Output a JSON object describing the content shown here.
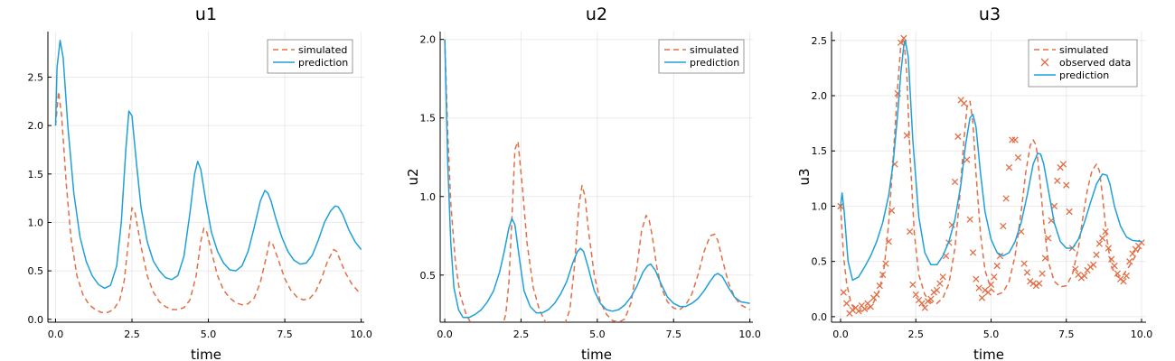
{
  "chart_data": [
    {
      "type": "line",
      "title": "u1",
      "xlabel": "time",
      "ylabel": "",
      "xlim": [
        -0.25,
        10.1
      ],
      "ylim": [
        -0.03,
        2.97
      ],
      "xticks": [
        0.0,
        2.5,
        5.0,
        7.5,
        10.0
      ],
      "xtick_labels": [
        "0.0",
        "2.5",
        "5.0",
        "7.5",
        "10.0"
      ],
      "yticks": [
        0.0,
        0.5,
        1.0,
        1.5,
        2.0,
        2.5
      ],
      "ytick_labels": [
        "0.0",
        "0.5",
        "1.0",
        "1.5",
        "2.0",
        "2.5"
      ],
      "grid": true,
      "legend": "top-right",
      "series": [
        {
          "name": "simulated",
          "style": "dashed",
          "color": "#e26f46",
          "x": [
            0.0,
            0.1,
            0.2,
            0.35,
            0.5,
            0.7,
            0.9,
            1.1,
            1.3,
            1.5,
            1.7,
            1.9,
            2.1,
            2.25,
            2.4,
            2.5,
            2.6,
            2.8,
            3.0,
            3.2,
            3.4,
            3.6,
            3.8,
            4.0,
            4.2,
            4.4,
            4.6,
            4.75,
            4.85,
            4.95,
            5.1,
            5.3,
            5.5,
            5.7,
            5.9,
            6.1,
            6.3,
            6.5,
            6.7,
            6.9,
            7.0,
            7.1,
            7.25,
            7.5,
            7.7,
            7.9,
            8.1,
            8.3,
            8.5,
            8.7,
            8.9,
            9.1,
            9.2,
            9.3,
            9.5,
            9.7,
            9.9,
            10.0
          ],
          "y": [
            2.0,
            2.35,
            2.1,
            1.4,
            0.85,
            0.45,
            0.25,
            0.15,
            0.1,
            0.07,
            0.07,
            0.1,
            0.2,
            0.4,
            0.85,
            1.15,
            1.1,
            0.75,
            0.45,
            0.28,
            0.18,
            0.13,
            0.1,
            0.1,
            0.12,
            0.2,
            0.45,
            0.8,
            0.94,
            0.9,
            0.7,
            0.45,
            0.3,
            0.22,
            0.17,
            0.15,
            0.16,
            0.22,
            0.38,
            0.65,
            0.8,
            0.78,
            0.65,
            0.42,
            0.3,
            0.23,
            0.2,
            0.21,
            0.28,
            0.42,
            0.6,
            0.72,
            0.7,
            0.62,
            0.47,
            0.36,
            0.29,
            0.27
          ]
        },
        {
          "name": "prediction",
          "style": "solid",
          "color": "#1fa0d9",
          "x": [
            0.0,
            0.05,
            0.15,
            0.25,
            0.4,
            0.6,
            0.8,
            1.0,
            1.2,
            1.4,
            1.6,
            1.8,
            2.0,
            2.15,
            2.3,
            2.4,
            2.5,
            2.65,
            2.8,
            3.0,
            3.2,
            3.4,
            3.6,
            3.8,
            4.0,
            4.2,
            4.4,
            4.55,
            4.65,
            4.75,
            4.9,
            5.1,
            5.3,
            5.5,
            5.7,
            5.9,
            6.1,
            6.3,
            6.5,
            6.7,
            6.85,
            6.95,
            7.05,
            7.2,
            7.4,
            7.6,
            7.8,
            8.0,
            8.2,
            8.4,
            8.6,
            8.8,
            9.0,
            9.15,
            9.25,
            9.4,
            9.6,
            9.8,
            10.0
          ],
          "y": [
            2.0,
            2.6,
            2.88,
            2.7,
            2.0,
            1.3,
            0.85,
            0.6,
            0.45,
            0.36,
            0.32,
            0.35,
            0.55,
            1.0,
            1.75,
            2.15,
            2.1,
            1.6,
            1.15,
            0.8,
            0.6,
            0.5,
            0.43,
            0.41,
            0.45,
            0.65,
            1.1,
            1.5,
            1.63,
            1.55,
            1.25,
            0.9,
            0.7,
            0.58,
            0.51,
            0.5,
            0.55,
            0.7,
            0.95,
            1.22,
            1.33,
            1.3,
            1.22,
            1.05,
            0.85,
            0.7,
            0.61,
            0.57,
            0.58,
            0.66,
            0.82,
            1.0,
            1.12,
            1.17,
            1.16,
            1.08,
            0.92,
            0.8,
            0.72
          ]
        }
      ]
    },
    {
      "type": "line",
      "title": "u2",
      "xlabel": "time",
      "ylabel": "u2",
      "xlim": [
        -0.15,
        10.1
      ],
      "ylim": [
        0.2,
        2.05
      ],
      "xticks": [
        0.0,
        2.5,
        5.0,
        7.5,
        10.0
      ],
      "xtick_labels": [
        "0.0",
        "2.5",
        "5.0",
        "7.5",
        "10.0"
      ],
      "yticks": [
        0.5,
        1.0,
        1.5,
        2.0
      ],
      "ytick_labels": [
        "0.5",
        "1.0",
        "1.5",
        "2.0"
      ],
      "grid": true,
      "legend": "top-right",
      "series": [
        {
          "name": "simulated",
          "style": "dashed",
          "color": "#e26f46",
          "x": [
            0.0,
            0.1,
            0.2,
            0.35,
            0.5,
            0.7,
            0.9,
            1.1,
            1.3,
            1.5,
            1.7,
            1.85,
            2.0,
            2.1,
            2.2,
            2.3,
            2.4,
            2.55,
            2.7,
            2.9,
            3.1,
            3.3,
            3.5,
            3.7,
            3.9,
            4.1,
            4.25,
            4.4,
            4.5,
            4.6,
            4.7,
            4.9,
            5.1,
            5.3,
            5.5,
            5.7,
            5.9,
            6.1,
            6.3,
            6.45,
            6.6,
            6.7,
            6.8,
            6.95,
            7.1,
            7.3,
            7.5,
            7.7,
            7.9,
            8.1,
            8.3,
            8.5,
            8.7,
            8.85,
            8.95,
            9.1,
            9.3,
            9.5,
            9.7,
            10.0
          ],
          "y": [
            2.0,
            1.4,
            0.95,
            0.58,
            0.38,
            0.25,
            0.18,
            0.14,
            0.12,
            0.11,
            0.12,
            0.15,
            0.25,
            0.45,
            0.85,
            1.3,
            1.35,
            1.05,
            0.7,
            0.42,
            0.28,
            0.2,
            0.16,
            0.15,
            0.17,
            0.28,
            0.55,
            0.95,
            1.07,
            1.0,
            0.8,
            0.5,
            0.33,
            0.25,
            0.21,
            0.2,
            0.22,
            0.32,
            0.55,
            0.78,
            0.88,
            0.85,
            0.75,
            0.55,
            0.42,
            0.33,
            0.29,
            0.28,
            0.31,
            0.38,
            0.5,
            0.65,
            0.75,
            0.76,
            0.72,
            0.6,
            0.45,
            0.36,
            0.31,
            0.28
          ]
        },
        {
          "name": "prediction",
          "style": "solid",
          "color": "#1fa0d9",
          "x": [
            0.0,
            0.1,
            0.2,
            0.3,
            0.45,
            0.6,
            0.8,
            1.0,
            1.2,
            1.4,
            1.6,
            1.8,
            1.95,
            2.1,
            2.2,
            2.3,
            2.45,
            2.6,
            2.8,
            3.0,
            3.2,
            3.4,
            3.6,
            3.8,
            4.0,
            4.2,
            4.35,
            4.45,
            4.55,
            4.7,
            4.9,
            5.1,
            5.3,
            5.5,
            5.7,
            5.9,
            6.1,
            6.3,
            6.5,
            6.65,
            6.75,
            6.9,
            7.1,
            7.3,
            7.5,
            7.7,
            7.9,
            8.1,
            8.3,
            8.5,
            8.7,
            8.85,
            8.95,
            9.1,
            9.3,
            9.5,
            9.7,
            10.0
          ],
          "y": [
            2.0,
            1.2,
            0.7,
            0.42,
            0.28,
            0.23,
            0.23,
            0.25,
            0.28,
            0.33,
            0.4,
            0.52,
            0.65,
            0.8,
            0.86,
            0.82,
            0.6,
            0.4,
            0.3,
            0.26,
            0.26,
            0.28,
            0.32,
            0.38,
            0.46,
            0.58,
            0.65,
            0.67,
            0.65,
            0.55,
            0.4,
            0.32,
            0.28,
            0.27,
            0.28,
            0.31,
            0.36,
            0.43,
            0.52,
            0.56,
            0.57,
            0.53,
            0.44,
            0.36,
            0.32,
            0.3,
            0.3,
            0.32,
            0.35,
            0.4,
            0.46,
            0.5,
            0.51,
            0.49,
            0.42,
            0.36,
            0.33,
            0.32
          ]
        }
      ]
    },
    {
      "type": "line",
      "title": "u3",
      "xlabel": "time",
      "ylabel": "u3",
      "xlim": [
        -0.3,
        10.15
      ],
      "ylim": [
        -0.05,
        2.58
      ],
      "xticks": [
        0.0,
        2.5,
        5.0,
        7.5,
        10.0
      ],
      "xtick_labels": [
        "0.0",
        "2.5",
        "5.0",
        "7.5",
        "10.0"
      ],
      "yticks": [
        0.0,
        0.5,
        1.0,
        1.5,
        2.0,
        2.5
      ],
      "ytick_labels": [
        "0.0",
        "0.5",
        "1.0",
        "1.5",
        "2.0",
        "2.5"
      ],
      "grid": true,
      "legend": "top-right",
      "series": [
        {
          "name": "simulated",
          "style": "dashed",
          "color": "#e26f46",
          "x": [
            0.0,
            0.1,
            0.2,
            0.35,
            0.5,
            0.7,
            0.9,
            1.1,
            1.3,
            1.45,
            1.6,
            1.75,
            1.9,
            2.0,
            2.1,
            2.2,
            2.3,
            2.45,
            2.6,
            2.8,
            3.0,
            3.2,
            3.4,
            3.6,
            3.8,
            3.95,
            4.1,
            4.2,
            4.3,
            4.4,
            4.5,
            4.65,
            4.8,
            5.0,
            5.2,
            5.4,
            5.6,
            5.8,
            6.0,
            6.15,
            6.3,
            6.4,
            6.5,
            6.6,
            6.75,
            6.9,
            7.1,
            7.3,
            7.5,
            7.7,
            7.9,
            8.05,
            8.2,
            8.35,
            8.5,
            8.6,
            8.7,
            8.85,
            9.0,
            9.2,
            9.4,
            9.6,
            9.8,
            10.0
          ],
          "y": [
            1.0,
            0.55,
            0.3,
            0.12,
            0.06,
            0.05,
            0.07,
            0.13,
            0.25,
            0.45,
            0.85,
            1.45,
            2.1,
            2.45,
            2.52,
            2.2,
            1.5,
            0.75,
            0.38,
            0.2,
            0.13,
            0.12,
            0.17,
            0.3,
            0.62,
            1.05,
            1.6,
            1.9,
            1.95,
            1.75,
            1.3,
            0.75,
            0.42,
            0.25,
            0.2,
            0.22,
            0.32,
            0.55,
            0.95,
            1.3,
            1.55,
            1.6,
            1.55,
            1.3,
            0.85,
            0.5,
            0.32,
            0.27,
            0.28,
            0.38,
            0.62,
            0.9,
            1.15,
            1.32,
            1.38,
            1.32,
            1.1,
            0.7,
            0.45,
            0.36,
            0.38,
            0.46,
            0.55,
            0.65
          ]
        },
        {
          "name": "observed data",
          "style": "markers",
          "marker": "x",
          "color": "#e26f46",
          "x": [
            0.0,
            0.1,
            0.2,
            0.3,
            0.4,
            0.5,
            0.6,
            0.7,
            0.8,
            0.9,
            1.0,
            1.1,
            1.2,
            1.3,
            1.4,
            1.5,
            1.6,
            1.7,
            1.8,
            1.9,
            2.0,
            2.1,
            2.2,
            2.3,
            2.4,
            2.5,
            2.6,
            2.7,
            2.8,
            2.9,
            3.0,
            3.1,
            3.2,
            3.3,
            3.4,
            3.5,
            3.6,
            3.7,
            3.8,
            3.9,
            4.0,
            4.1,
            4.2,
            4.3,
            4.4,
            4.5,
            4.6,
            4.7,
            4.8,
            4.9,
            5.0,
            5.1,
            5.2,
            5.3,
            5.4,
            5.5,
            5.6,
            5.7,
            5.8,
            5.9,
            6.0,
            6.1,
            6.2,
            6.3,
            6.4,
            6.5,
            6.6,
            6.7,
            6.8,
            6.9,
            7.0,
            7.1,
            7.2,
            7.3,
            7.4,
            7.5,
            7.6,
            7.7,
            7.8,
            7.9,
            8.0,
            8.1,
            8.2,
            8.3,
            8.4,
            8.5,
            8.6,
            8.7,
            8.8,
            8.9,
            9.0,
            9.1,
            9.2,
            9.3,
            9.4,
            9.5,
            9.6,
            9.7,
            9.8,
            9.9,
            10.0
          ],
          "y": [
            1.0,
            0.22,
            0.12,
            0.03,
            0.06,
            0.08,
            0.05,
            0.1,
            0.07,
            0.12,
            0.09,
            0.17,
            0.2,
            0.28,
            0.38,
            0.48,
            0.68,
            0.96,
            1.38,
            2.02,
            2.48,
            2.52,
            1.64,
            0.77,
            0.29,
            0.2,
            0.15,
            0.12,
            0.08,
            0.14,
            0.16,
            0.22,
            0.24,
            0.3,
            0.36,
            0.55,
            0.67,
            0.83,
            1.22,
            1.63,
            1.96,
            1.93,
            1.42,
            0.88,
            0.58,
            0.34,
            0.26,
            0.17,
            0.24,
            0.22,
            0.29,
            0.36,
            0.46,
            0.55,
            0.82,
            1.07,
            1.35,
            1.6,
            1.6,
            1.44,
            0.77,
            0.48,
            0.4,
            0.32,
            0.3,
            0.28,
            0.3,
            0.39,
            0.53,
            0.71,
            0.87,
            1.0,
            1.23,
            1.35,
            1.38,
            1.19,
            0.95,
            0.62,
            0.43,
            0.38,
            0.35,
            0.37,
            0.42,
            0.45,
            0.47,
            0.56,
            0.66,
            0.71,
            0.77,
            0.62,
            0.52,
            0.46,
            0.39,
            0.34,
            0.32,
            0.37,
            0.5,
            0.57,
            0.61,
            0.64,
            0.67
          ]
        },
        {
          "name": "prediction",
          "style": "solid",
          "color": "#1fa0d9",
          "x": [
            0.0,
            0.05,
            0.12,
            0.25,
            0.4,
            0.6,
            0.8,
            1.0,
            1.2,
            1.4,
            1.6,
            1.75,
            1.9,
            2.0,
            2.1,
            2.15,
            2.25,
            2.4,
            2.6,
            2.8,
            3.0,
            3.2,
            3.4,
            3.6,
            3.8,
            4.0,
            4.15,
            4.3,
            4.4,
            4.5,
            4.65,
            4.8,
            5.0,
            5.2,
            5.4,
            5.6,
            5.8,
            6.0,
            6.2,
            6.4,
            6.55,
            6.65,
            6.75,
            6.9,
            7.1,
            7.3,
            7.5,
            7.7,
            7.9,
            8.1,
            8.3,
            8.5,
            8.7,
            8.85,
            8.95,
            9.1,
            9.3,
            9.5,
            9.7,
            10.0
          ],
          "y": [
            1.0,
            1.12,
            0.95,
            0.5,
            0.33,
            0.36,
            0.45,
            0.55,
            0.68,
            0.85,
            1.1,
            1.4,
            1.85,
            2.2,
            2.45,
            2.5,
            2.35,
            1.6,
            0.9,
            0.58,
            0.47,
            0.47,
            0.55,
            0.68,
            0.88,
            1.2,
            1.55,
            1.8,
            1.83,
            1.72,
            1.3,
            0.95,
            0.7,
            0.58,
            0.55,
            0.58,
            0.68,
            0.85,
            1.1,
            1.38,
            1.48,
            1.47,
            1.38,
            1.15,
            0.85,
            0.68,
            0.62,
            0.62,
            0.7,
            0.85,
            1.03,
            1.2,
            1.29,
            1.28,
            1.2,
            1.0,
            0.82,
            0.72,
            0.69,
            0.68
          ]
        }
      ]
    }
  ]
}
